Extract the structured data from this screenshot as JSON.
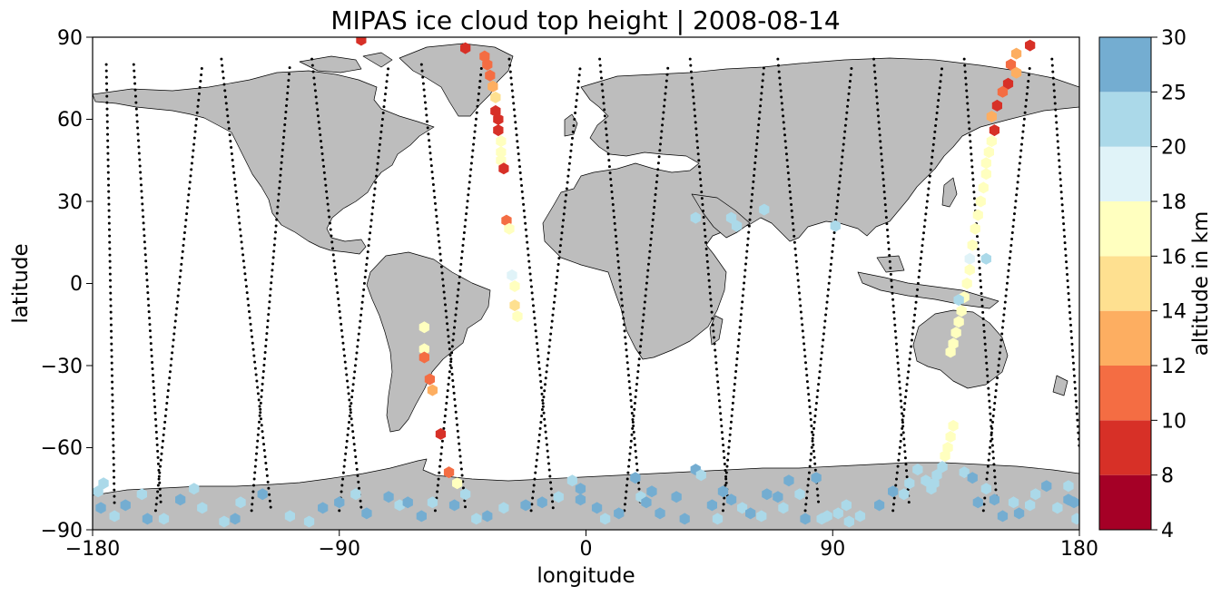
{
  "chart_data": {
    "type": "scatter",
    "title": "MIPAS ice cloud top height | 2008-08-14",
    "xlabel": "longitude",
    "ylabel": "latitude",
    "xlim": [
      -180,
      180
    ],
    "ylim": [
      -90,
      90
    ],
    "xticks": [
      -180,
      -90,
      0,
      90,
      180
    ],
    "yticks": [
      -90,
      -60,
      -30,
      0,
      30,
      60,
      90
    ],
    "xtick_labels": [
      "−180",
      "−90",
      "0",
      "90",
      "180"
    ],
    "ytick_labels": [
      "−90",
      "−60",
      "−30",
      "0",
      "30",
      "60",
      "90"
    ],
    "grid": false,
    "land_color": "#bdbdbd",
    "colorbar": {
      "label": "altitude in km",
      "boundaries": [
        4,
        8,
        10,
        12,
        14,
        16,
        18,
        20,
        25,
        30
      ],
      "tick_labels": [
        "4",
        "8",
        "10",
        "12",
        "14",
        "16",
        "18",
        "20",
        "25",
        "30"
      ],
      "colors": [
        "#a50026",
        "#d73027",
        "#f46d43",
        "#fdae61",
        "#fee090",
        "#ffffbf",
        "#e0f3f8",
        "#abd9e9",
        "#74add1",
        "#4575b4",
        "#313695"
      ]
    },
    "tracks": [
      [
        -175,
        80,
        -172,
        -82
      ],
      [
        -165,
        80,
        -155,
        -82
      ],
      [
        -157,
        -83,
        -140,
        80
      ],
      [
        -133,
        82,
        -115,
        -82
      ],
      [
        -122,
        -83,
        -108,
        80
      ],
      [
        -100,
        82,
        -82,
        -82
      ],
      [
        -90,
        -83,
        -72,
        80
      ],
      [
        -60,
        80,
        -44,
        -82
      ],
      [
        -55,
        -83,
        -38,
        80
      ],
      [
        -28,
        82,
        -12,
        -82
      ],
      [
        -20,
        -83,
        -2,
        80
      ],
      [
        5,
        82,
        20,
        -82
      ],
      [
        14,
        -83,
        30,
        80
      ],
      [
        38,
        82,
        52,
        -82
      ],
      [
        50,
        -83,
        65,
        80
      ],
      [
        70,
        82,
        85,
        -82
      ],
      [
        80,
        -83,
        97,
        80
      ],
      [
        105,
        82,
        118,
        -82
      ],
      [
        112,
        -83,
        130,
        80
      ],
      [
        138,
        82,
        150,
        -82
      ],
      [
        145,
        -83,
        162,
        80
      ],
      [
        170,
        82,
        180,
        -60
      ]
    ],
    "series": [
      {
        "values": [
          [
            -82,
            89,
            6
          ],
          [
            -44,
            86,
            6
          ],
          [
            -37,
            83,
            9
          ],
          [
            -36,
            80,
            9
          ],
          [
            -35,
            76,
            9
          ],
          [
            -34,
            72,
            10
          ],
          [
            -33,
            68,
            12
          ],
          [
            -33,
            63,
            6
          ],
          [
            -32,
            60,
            6
          ],
          [
            -32,
            56,
            6
          ],
          [
            -31,
            52,
            14
          ],
          [
            -31,
            48,
            14
          ],
          [
            -31,
            45,
            14
          ],
          [
            -30,
            42,
            6
          ],
          [
            -29,
            23,
            9
          ],
          [
            -28,
            20,
            15
          ],
          [
            -27,
            3,
            17
          ],
          [
            -26,
            -1,
            15
          ],
          [
            -26,
            -8,
            12
          ],
          [
            -25,
            -12,
            14
          ],
          [
            -59,
            -16,
            14
          ],
          [
            -59,
            -24,
            14
          ],
          [
            -59,
            -27,
            9
          ],
          [
            -57,
            -35,
            9
          ],
          [
            -56,
            -39,
            11
          ],
          [
            -53,
            -55,
            6
          ],
          [
            -50,
            -69,
            9
          ],
          [
            -47,
            -73,
            15
          ]
        ]
      },
      {
        "values": [
          [
            162,
            87,
            6
          ],
          [
            157,
            84,
            11
          ],
          [
            155,
            80,
            9
          ],
          [
            157,
            77,
            11
          ],
          [
            154,
            73,
            6
          ],
          [
            152,
            70,
            9
          ],
          [
            150,
            65,
            6
          ],
          [
            148,
            61,
            11
          ],
          [
            149,
            56,
            6
          ],
          [
            148,
            52,
            14
          ],
          [
            147,
            48,
            15
          ],
          [
            146,
            44,
            15
          ],
          [
            146,
            40,
            14
          ],
          [
            145,
            35,
            15
          ],
          [
            144,
            30,
            15
          ],
          [
            143,
            25,
            15
          ],
          [
            142,
            20,
            15
          ],
          [
            141,
            14,
            15
          ],
          [
            140,
            9,
            17
          ],
          [
            140,
            5,
            15
          ],
          [
            139,
            0,
            15
          ],
          [
            138,
            -5,
            15
          ],
          [
            137,
            -10,
            15
          ],
          [
            136,
            -14,
            15
          ],
          [
            135,
            -18,
            15
          ],
          [
            134,
            -22,
            14
          ],
          [
            133,
            -25,
            14
          ],
          [
            134,
            -52,
            14
          ],
          [
            133,
            -56,
            14
          ],
          [
            132,
            -60,
            14
          ],
          [
            131,
            -63,
            14
          ],
          [
            130,
            -67,
            18
          ],
          [
            128,
            -70,
            18
          ],
          [
            127,
            -73,
            18
          ]
        ]
      },
      {
        "values": [
          [
            40,
            24,
            19
          ],
          [
            53,
            24,
            19
          ],
          [
            55,
            21,
            19
          ],
          [
            65,
            27,
            19
          ],
          [
            91,
            21,
            19
          ],
          [
            146,
            9,
            18
          ],
          [
            136,
            -6,
            18
          ],
          [
            176,
            -74,
            18
          ]
        ]
      },
      {
        "values": [
          [
            -178,
            -76,
            19
          ],
          [
            -176,
            -73,
            19
          ],
          [
            -177,
            -82,
            22
          ],
          [
            -172,
            -85,
            19
          ],
          [
            -168,
            -81,
            22
          ],
          [
            -162,
            -77,
            19
          ],
          [
            -160,
            -86,
            22
          ],
          [
            -154,
            -86,
            19
          ],
          [
            -148,
            -79,
            22
          ],
          [
            -143,
            -75,
            19
          ],
          [
            -140,
            -82,
            19
          ],
          [
            -132,
            -87,
            19
          ],
          [
            -128,
            -86,
            22
          ],
          [
            -126,
            -80,
            19
          ],
          [
            -118,
            -77,
            22
          ],
          [
            -108,
            -85,
            19
          ],
          [
            -101,
            -87,
            19
          ],
          [
            -96,
            -82,
            22
          ],
          [
            -90,
            -80,
            22
          ],
          [
            -84,
            -77,
            19
          ],
          [
            -80,
            -84,
            22
          ],
          [
            -72,
            -78,
            22
          ],
          [
            -68,
            -81,
            19
          ],
          [
            -65,
            -80,
            22
          ],
          [
            -60,
            -85,
            22
          ],
          [
            -56,
            -80,
            19
          ],
          [
            -48,
            -81,
            22
          ],
          [
            -44,
            -77,
            19
          ],
          [
            -40,
            -86,
            19
          ],
          [
            -36,
            -85,
            22
          ],
          [
            -30,
            -82,
            19
          ],
          [
            -22,
            -81,
            22
          ],
          [
            -16,
            -80,
            22
          ],
          [
            -10,
            -78,
            19
          ],
          [
            -5,
            -72,
            19
          ],
          [
            -2,
            -75,
            22
          ],
          [
            -2,
            -79,
            22
          ],
          [
            4,
            -82,
            22
          ],
          [
            7,
            -86,
            19
          ],
          [
            12,
            -84,
            22
          ],
          [
            18,
            -71,
            22
          ],
          [
            20,
            -78,
            19
          ],
          [
            22,
            -80,
            22
          ],
          [
            24,
            -76,
            22
          ],
          [
            27,
            -84,
            22
          ],
          [
            33,
            -78,
            22
          ],
          [
            36,
            -86,
            22
          ],
          [
            40,
            -68,
            22
          ],
          [
            42,
            -70,
            19
          ],
          [
            46,
            -81,
            22
          ],
          [
            48,
            -86,
            19
          ],
          [
            50,
            -76,
            22
          ],
          [
            53,
            -79,
            22
          ],
          [
            57,
            -82,
            19
          ],
          [
            60,
            -84,
            22
          ],
          [
            64,
            -85,
            19
          ],
          [
            66,
            -77,
            22
          ],
          [
            70,
            -78,
            22
          ],
          [
            72,
            -82,
            19
          ],
          [
            74,
            -72,
            22
          ],
          [
            78,
            -77,
            19
          ],
          [
            80,
            -86,
            22
          ],
          [
            84,
            -71,
            22
          ],
          [
            86,
            -86,
            19
          ],
          [
            88,
            -85,
            19
          ],
          [
            92,
            -84,
            19
          ],
          [
            95,
            -81,
            19
          ],
          [
            96,
            -87,
            19
          ],
          [
            100,
            -85,
            19
          ],
          [
            107,
            -81,
            22
          ],
          [
            112,
            -76,
            22
          ],
          [
            116,
            -77,
            19
          ],
          [
            118,
            -73,
            19
          ],
          [
            121,
            -68,
            19
          ],
          [
            124,
            -72,
            19
          ],
          [
            126,
            -75,
            19
          ],
          [
            138,
            -69,
            19
          ],
          [
            141,
            -71,
            22
          ],
          [
            143,
            -80,
            22
          ],
          [
            146,
            -75,
            19
          ],
          [
            149,
            -79,
            22
          ],
          [
            152,
            -85,
            22
          ],
          [
            156,
            -80,
            19
          ],
          [
            158,
            -84,
            22
          ],
          [
            162,
            -81,
            19
          ],
          [
            164,
            -77,
            19
          ],
          [
            168,
            -74,
            22
          ],
          [
            172,
            -82,
            19
          ],
          [
            176,
            -79,
            22
          ],
          [
            178,
            -80,
            22
          ],
          [
            179,
            -86,
            19
          ]
        ]
      }
    ]
  }
}
